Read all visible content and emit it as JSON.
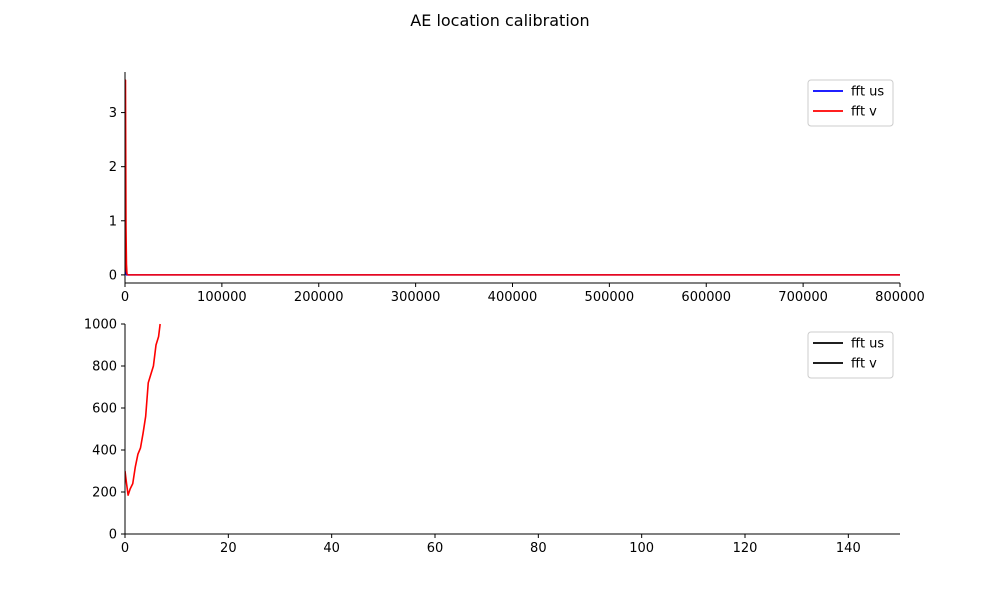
{
  "figure": {
    "title": "AE location calibration"
  },
  "chart_data": [
    {
      "type": "line",
      "title": "",
      "xlabel": "",
      "ylabel": "",
      "xlim": [
        0,
        800000
      ],
      "ylim": [
        -0.15,
        3.75
      ],
      "xticks": [
        0,
        100000,
        200000,
        300000,
        400000,
        500000,
        600000,
        700000,
        800000
      ],
      "yticks": [
        0,
        1,
        2,
        3
      ],
      "legend_placement": "upper-right",
      "series": [
        {
          "name": "fft us",
          "color": "#0000ff",
          "x": [
            0,
            800,
            1600,
            2400,
            800000
          ],
          "y": [
            0,
            0.3,
            0.0,
            0,
            0
          ]
        },
        {
          "name": "fft v",
          "color": "#ff0000",
          "x": [
            0,
            500,
            1000,
            1500,
            2000,
            3000,
            800000
          ],
          "y": [
            0.05,
            3.6,
            0.9,
            0.2,
            0.02,
            0,
            0
          ]
        }
      ]
    },
    {
      "type": "line",
      "title": "",
      "xlabel": "",
      "ylabel": "",
      "xlim": [
        0,
        150
      ],
      "ylim": [
        0,
        1000
      ],
      "xticks": [
        0,
        20,
        40,
        60,
        80,
        100,
        120,
        140
      ],
      "yticks": [
        0,
        200,
        400,
        600,
        800,
        1000
      ],
      "legend_placement": "upper-right",
      "legend_entries": [
        {
          "name": "fft us",
          "color": "#000000"
        },
        {
          "name": "fft v",
          "color": "#000000"
        }
      ],
      "series": [
        {
          "color": "#ff0000",
          "x": [
            0,
            0.3,
            0.6,
            1.0,
            1.5,
            2.0,
            2.5,
            3.0,
            3.5,
            4.0,
            4.5,
            5.0,
            5.5,
            6.0,
            6.5,
            6.8
          ],
          "y": [
            300,
            240,
            185,
            215,
            240,
            320,
            380,
            410,
            480,
            560,
            720,
            760,
            800,
            900,
            940,
            1000
          ]
        }
      ]
    }
  ]
}
